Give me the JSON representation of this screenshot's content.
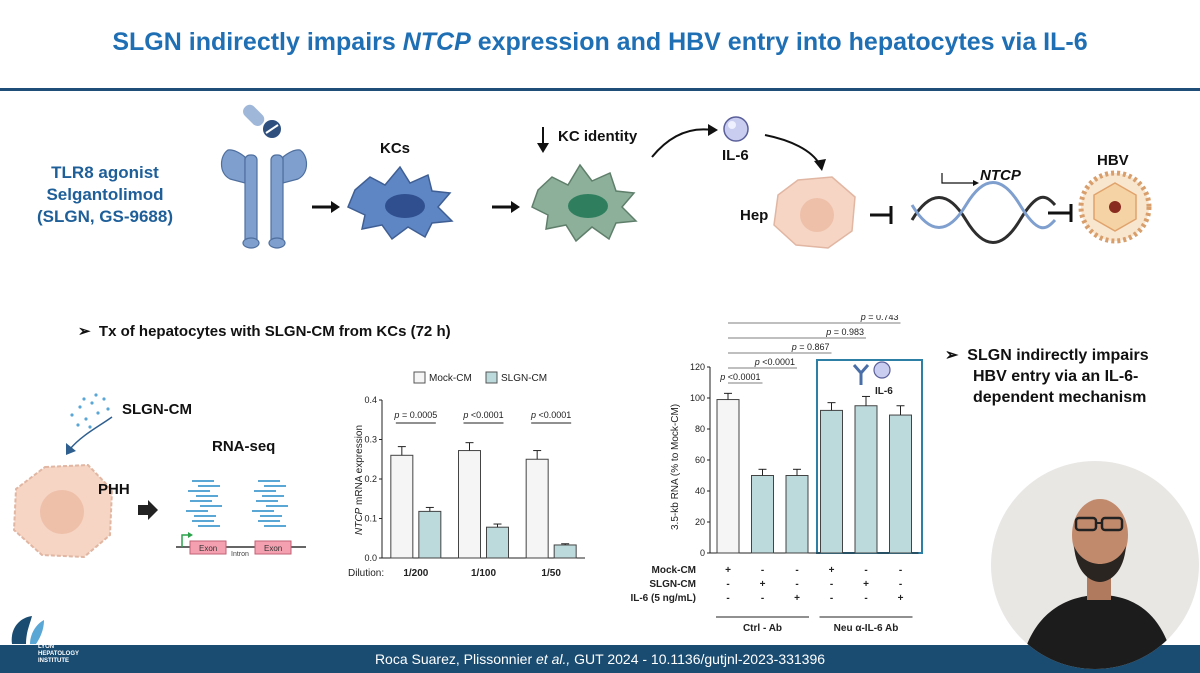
{
  "header": {
    "title_part1": "SLGN indirectly impairs ",
    "title_italic": "NTCP",
    "title_part2": " expression and HBV entry into hepatocytes via IL-6"
  },
  "pathway": {
    "agonist_line1": "TLR8 agonist",
    "agonist_line2": "Selgantolimod",
    "agonist_line3": "(SLGN, GS-9688)",
    "kcs_label": "KCs",
    "kc_identity_label": "KC identity",
    "il6_label": "IL-6",
    "hep_label": "Hep",
    "ntcp_label": "NTCP",
    "hbv_label": "HBV"
  },
  "left_panel": {
    "bullet": "Tx of hepatocytes with SLGN-CM from KCs (72 h)",
    "slgn_cm_label": "SLGN-CM",
    "phh_label": "PHH",
    "rnaseq_label": "RNA-seq",
    "exon1": "Exon",
    "intron": "Intron",
    "exon2": "Exon"
  },
  "chart_data": [
    {
      "type": "bar",
      "legend": [
        "Mock-CM",
        "SLGN-CM"
      ],
      "ylabel_italic": "NTCP",
      "ylabel_rest": " mRNA expression",
      "xlabel": "Dilution:",
      "categories": [
        "1/200",
        "1/100",
        "1/50"
      ],
      "series": [
        {
          "name": "Mock-CM",
          "values": [
            0.26,
            0.272,
            0.25
          ],
          "errors": [
            0.022,
            0.02,
            0.022
          ]
        },
        {
          "name": "SLGN-CM",
          "values": [
            0.118,
            0.078,
            0.033
          ],
          "errors": [
            0.01,
            0.008,
            0.003
          ]
        }
      ],
      "ylim": [
        0,
        0.4
      ],
      "yticks": [
        "0.0",
        "0.1",
        "0.2",
        "0.3",
        "0.4"
      ],
      "pvalues": [
        "p = 0.0005",
        "p <0.0001",
        "p <0.0001"
      ]
    },
    {
      "type": "bar",
      "ylabel": "3.5-kb RNA (% to Mock-CM)",
      "ylim": [
        0,
        120
      ],
      "yticks": [
        "0",
        "20",
        "40",
        "60",
        "80",
        "100",
        "120"
      ],
      "values": [
        99,
        50,
        50,
        92,
        95,
        89
      ],
      "errors": [
        4,
        4,
        4,
        5,
        6,
        6
      ],
      "pvalues": [
        "p <0.0001",
        "p <0.0001",
        "p = 0.867",
        "p = 0.983",
        "p = 0.743"
      ],
      "rows": [
        {
          "label": "Mock-CM",
          "marks": [
            "+",
            "-",
            "-",
            "+",
            "-",
            "-"
          ]
        },
        {
          "label": "SLGN-CM",
          "marks": [
            "-",
            "+",
            "-",
            "-",
            "+",
            "-"
          ]
        },
        {
          "label": "IL-6 (5 ng/mL)",
          "marks": [
            "-",
            "-",
            "+",
            "-",
            "-",
            "+"
          ]
        }
      ],
      "groups": [
        "Ctrl - Ab",
        "Neu α-IL-6 Ab"
      ],
      "inset_label": "IL-6"
    }
  ],
  "right_panel": {
    "bullet_line1": "SLGN indirectly impairs",
    "bullet_line2": "HBV entry via an IL-6-",
    "bullet_line3": "dependent mechanism"
  },
  "logo": {
    "line1": "LYON",
    "line2": "HEPATOLOGY",
    "line3": "INSTITUTE"
  },
  "footer": {
    "citation_part1": "Roca Suarez, Plissonnier ",
    "citation_italic": "et al.,",
    "citation_part2": " GUT 2024 - 10.1136/gutjnl-2023-331396"
  },
  "colors": {
    "title_blue": "#1f6fb5",
    "footer_navy": "#1a4c72",
    "receptor_blue": "#7f9fcf",
    "kc_blue": "#5f86c4",
    "kc_green": "#7fa38f",
    "hep_pink": "#f6d5c4",
    "slgn_bar": "#bcd9dc"
  }
}
